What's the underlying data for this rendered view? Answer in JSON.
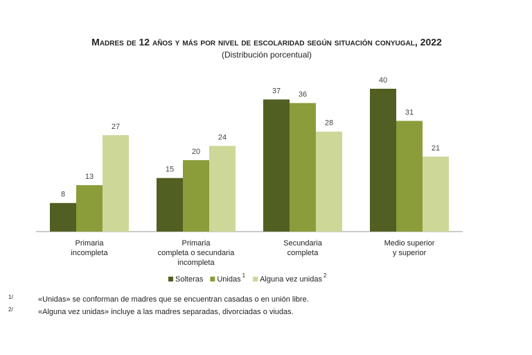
{
  "chart_data": {
    "type": "bar",
    "title": "Madres de 12 años y más por nivel de escolaridad según situación conyugal, 2022",
    "subtitle": "(Distribución porcentual)",
    "categories": [
      [
        "Primaria",
        "incompleta"
      ],
      [
        "Primaria",
        "completa o secundaria",
        "incompleta"
      ],
      [
        "Secundaria",
        "completa"
      ],
      [
        "Medio superior",
        "y superior"
      ]
    ],
    "series": [
      {
        "name": "Solteras",
        "color": "#515f22",
        "values": [
          8,
          15,
          37,
          40
        ]
      },
      {
        "name": "Unidas",
        "note": "1",
        "color": "#8a9d3a",
        "values": [
          13,
          20,
          36,
          31
        ]
      },
      {
        "name": "Alguna vez unidas",
        "note": "2",
        "color": "#cdd898",
        "values": [
          27,
          24,
          28,
          21
        ]
      }
    ],
    "footnotes": [
      {
        "marker": "1/",
        "text": "«Unidas» se conforman de madres que se encuentran casadas o en unión libre."
      },
      {
        "marker": "2/",
        "text": "«Alguna vez unidas» incluye a las madres separadas, divorciadas o viudas."
      }
    ]
  }
}
